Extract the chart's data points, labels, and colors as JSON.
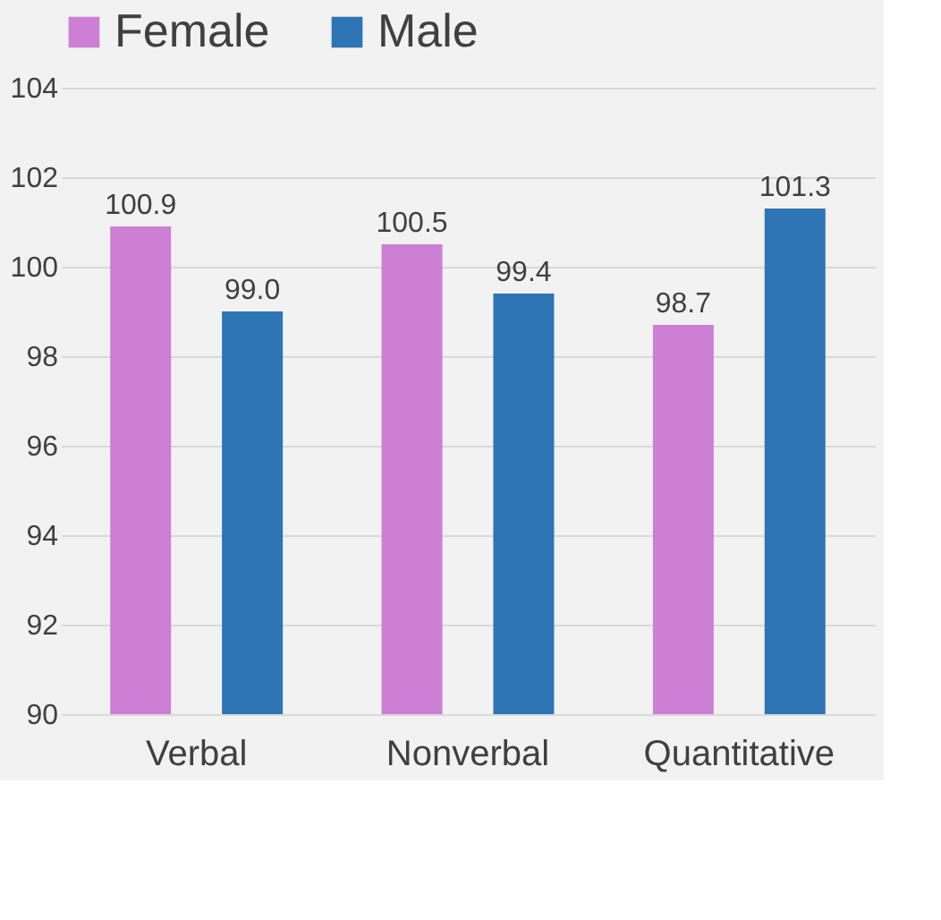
{
  "chart_data": {
    "type": "bar",
    "categories": [
      "Verbal",
      "Nonverbal",
      "Quantitative"
    ],
    "series": [
      {
        "name": "Female",
        "color": "#cc7fd4",
        "values": [
          100.9,
          100.5,
          98.7
        ],
        "value_labels": [
          "100.9",
          "100.5",
          "98.7"
        ]
      },
      {
        "name": "Male",
        "color": "#2e75b6",
        "values": [
          99.0,
          99.4,
          101.3
        ],
        "value_labels": [
          "99.0",
          "99.4",
          "101.3"
        ]
      }
    ],
    "ylim": [
      90,
      104
    ],
    "yticks": [
      90,
      92,
      94,
      96,
      98,
      100,
      102,
      104
    ],
    "grid": "y",
    "legend": "top"
  }
}
